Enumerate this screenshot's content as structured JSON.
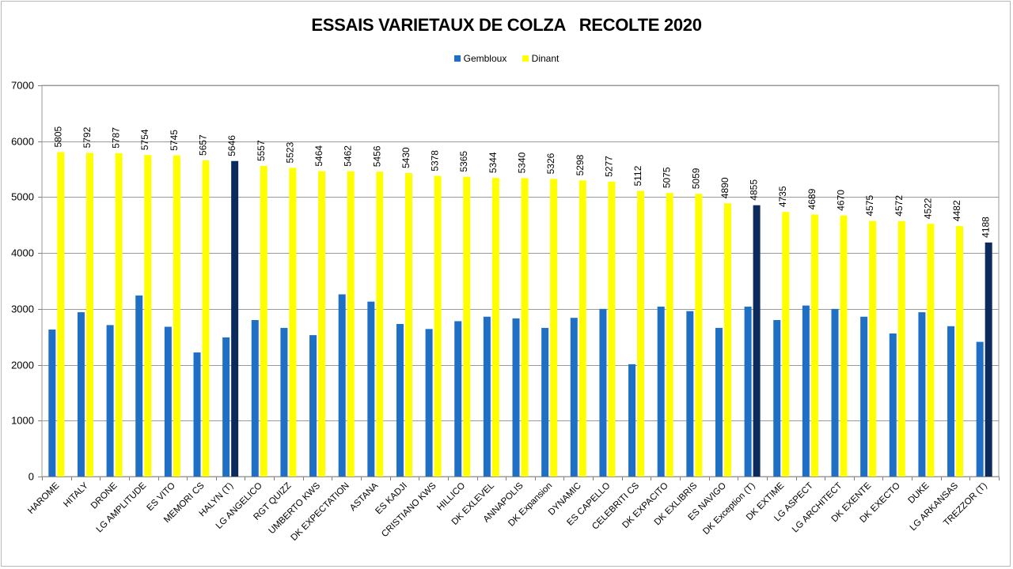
{
  "chart_data": {
    "type": "bar",
    "title": "ESSAIS VARIETAUX DE COLZA   RECOLTE 2020",
    "xlabel": "",
    "ylabel": "",
    "ylim": [
      0,
      7000
    ],
    "yticks": [
      0,
      1000,
      2000,
      3000,
      4000,
      5000,
      6000,
      7000
    ],
    "grid": true,
    "legend_position": "top-center",
    "categories": [
      "HAROME",
      "HITALY",
      "DRONE",
      "LG AMPLITUDE",
      "ES VITO",
      "MEMORI CS",
      "HALYN (T)",
      "LG ANGELICO",
      "RGT QUIZZ",
      "UMBERTO KWS",
      "DK EXPECTATION",
      "ASTANA",
      "ES KADJI",
      "CRISTIANO KWS",
      "HILLICO",
      "DK EXLEVEL",
      "ANNAPOLIS",
      "DK Expansion",
      "DYNAMIC",
      "ES CAPELLO",
      "CELEBRITI CS",
      "DK EXPACITO",
      "DK EXLIBRIS",
      "ES NAVIGO",
      "DK Exception (T)",
      "DK EXTIME",
      "LG ASPECT",
      "LG ARCHITECT",
      "DK EXENTE",
      "DK EXECTO",
      "DUKE",
      "LG ARKANSAS",
      "TREZZOR (T)"
    ],
    "series": [
      {
        "name": "Gembloux",
        "color": "#1f6fc5",
        "values": [
          2630,
          2940,
          2710,
          3240,
          2680,
          2220,
          2490,
          2800,
          2660,
          2530,
          3260,
          3130,
          2730,
          2640,
          2780,
          2860,
          2830,
          2660,
          2840,
          3000,
          2010,
          3040,
          2960,
          2660,
          3040,
          2800,
          3060,
          3000,
          2860,
          2560,
          2940,
          2690,
          2410
        ]
      },
      {
        "name": "Dinant",
        "color": "#ffff00",
        "highlight_color": "#0d2a5c",
        "highlighted": [
          "HALYN (T)",
          "DK Exception (T)",
          "TREZZOR (T)"
        ],
        "values": [
          5805,
          5792,
          5787,
          5754,
          5745,
          5657,
          5646,
          5557,
          5523,
          5464,
          5462,
          5456,
          5430,
          5378,
          5365,
          5344,
          5340,
          5326,
          5298,
          5277,
          5112,
          5075,
          5059,
          4890,
          4855,
          4735,
          4689,
          4670,
          4575,
          4572,
          4522,
          4482,
          4188
        ],
        "labels": [
          "5805",
          "5792",
          "5787",
          "5754",
          "5745",
          "5657",
          "5646",
          "5557",
          "5523",
          "5464",
          "5462",
          "5456",
          "5430",
          "5378",
          "5365",
          "5344",
          "5340",
          "5326",
          "5298",
          "5277",
          "5112",
          "5075",
          "5059",
          "4890",
          "4855",
          "4735",
          "4689",
          "4670",
          "4575",
          "4572",
          "4522",
          "4482",
          "4188"
        ]
      }
    ]
  }
}
